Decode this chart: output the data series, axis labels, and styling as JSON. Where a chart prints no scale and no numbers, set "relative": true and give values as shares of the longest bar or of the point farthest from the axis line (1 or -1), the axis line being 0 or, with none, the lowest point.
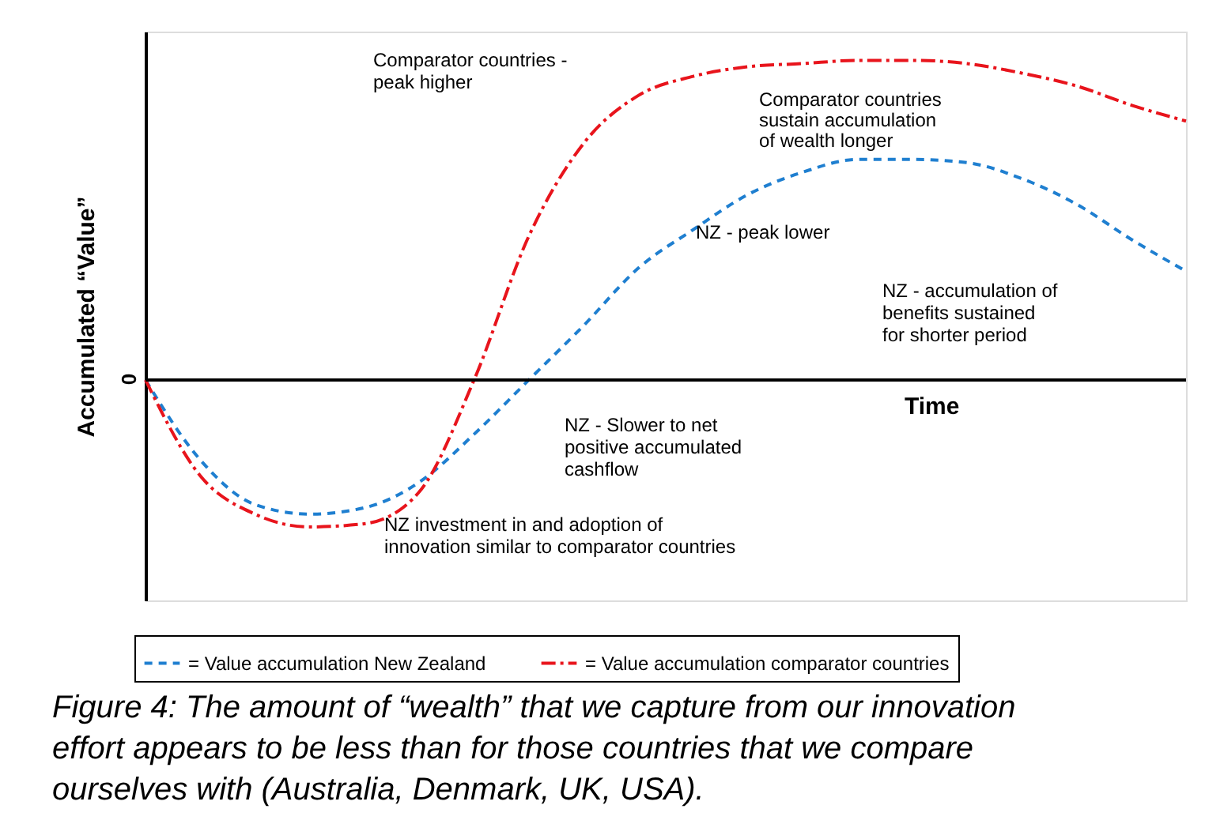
{
  "chart_data": {
    "type": "line",
    "relative": true,
    "ylabel": "Accumulated “Value”",
    "xlabel": "Time",
    "categories": [
      null,
      null,
      null,
      null,
      null,
      null,
      null,
      null,
      null,
      null,
      null,
      null,
      null,
      null,
      null,
      null,
      null,
      null,
      null,
      null
    ],
    "series": [
      {
        "name": "= Value accumulation New Zealand",
        "color": "#1f7fd0",
        "line_style": "dashed",
        "values": [
          0,
          -0.25,
          -0.39,
          -0.42,
          -0.4,
          -0.32,
          -0.17,
          0,
          0.17,
          0.35,
          0.47,
          0.58,
          0.65,
          0.69,
          0.69,
          0.68,
          0.63,
          0.55,
          0.44,
          0.34
        ]
      },
      {
        "name": "= Value accumulation comparator countries",
        "color": "#e8141c",
        "line_style": "dashdot",
        "values": [
          0,
          -0.3,
          -0.42,
          -0.46,
          -0.45,
          -0.35,
          0,
          0.45,
          0.74,
          0.89,
          0.95,
          0.98,
          0.99,
          1.0,
          1.0,
          0.99,
          0.96,
          0.92,
          0.86,
          0.81
        ]
      }
    ],
    "annotations": [
      "Comparator countries -\npeak higher",
      "Comparator countries\nsustain accumulation\nof wealth longer",
      "NZ - peak lower",
      "NZ - accumulation of\nbenefits sustained\nfor shorter period",
      "NZ - Slower to net\npositive accumulated\ncashflow",
      "NZ investment in and adoption of\ninnovation similar to comparator countries",
      "0",
      "Figure 4: The amount of “wealth” that we capture from our innovation\neffort appears to be less than for those countries that we compare\nourselves with (Australia, Denmark, UK, USA)."
    ],
    "legend": "bottom",
    "grid": false,
    "marker": "none"
  }
}
